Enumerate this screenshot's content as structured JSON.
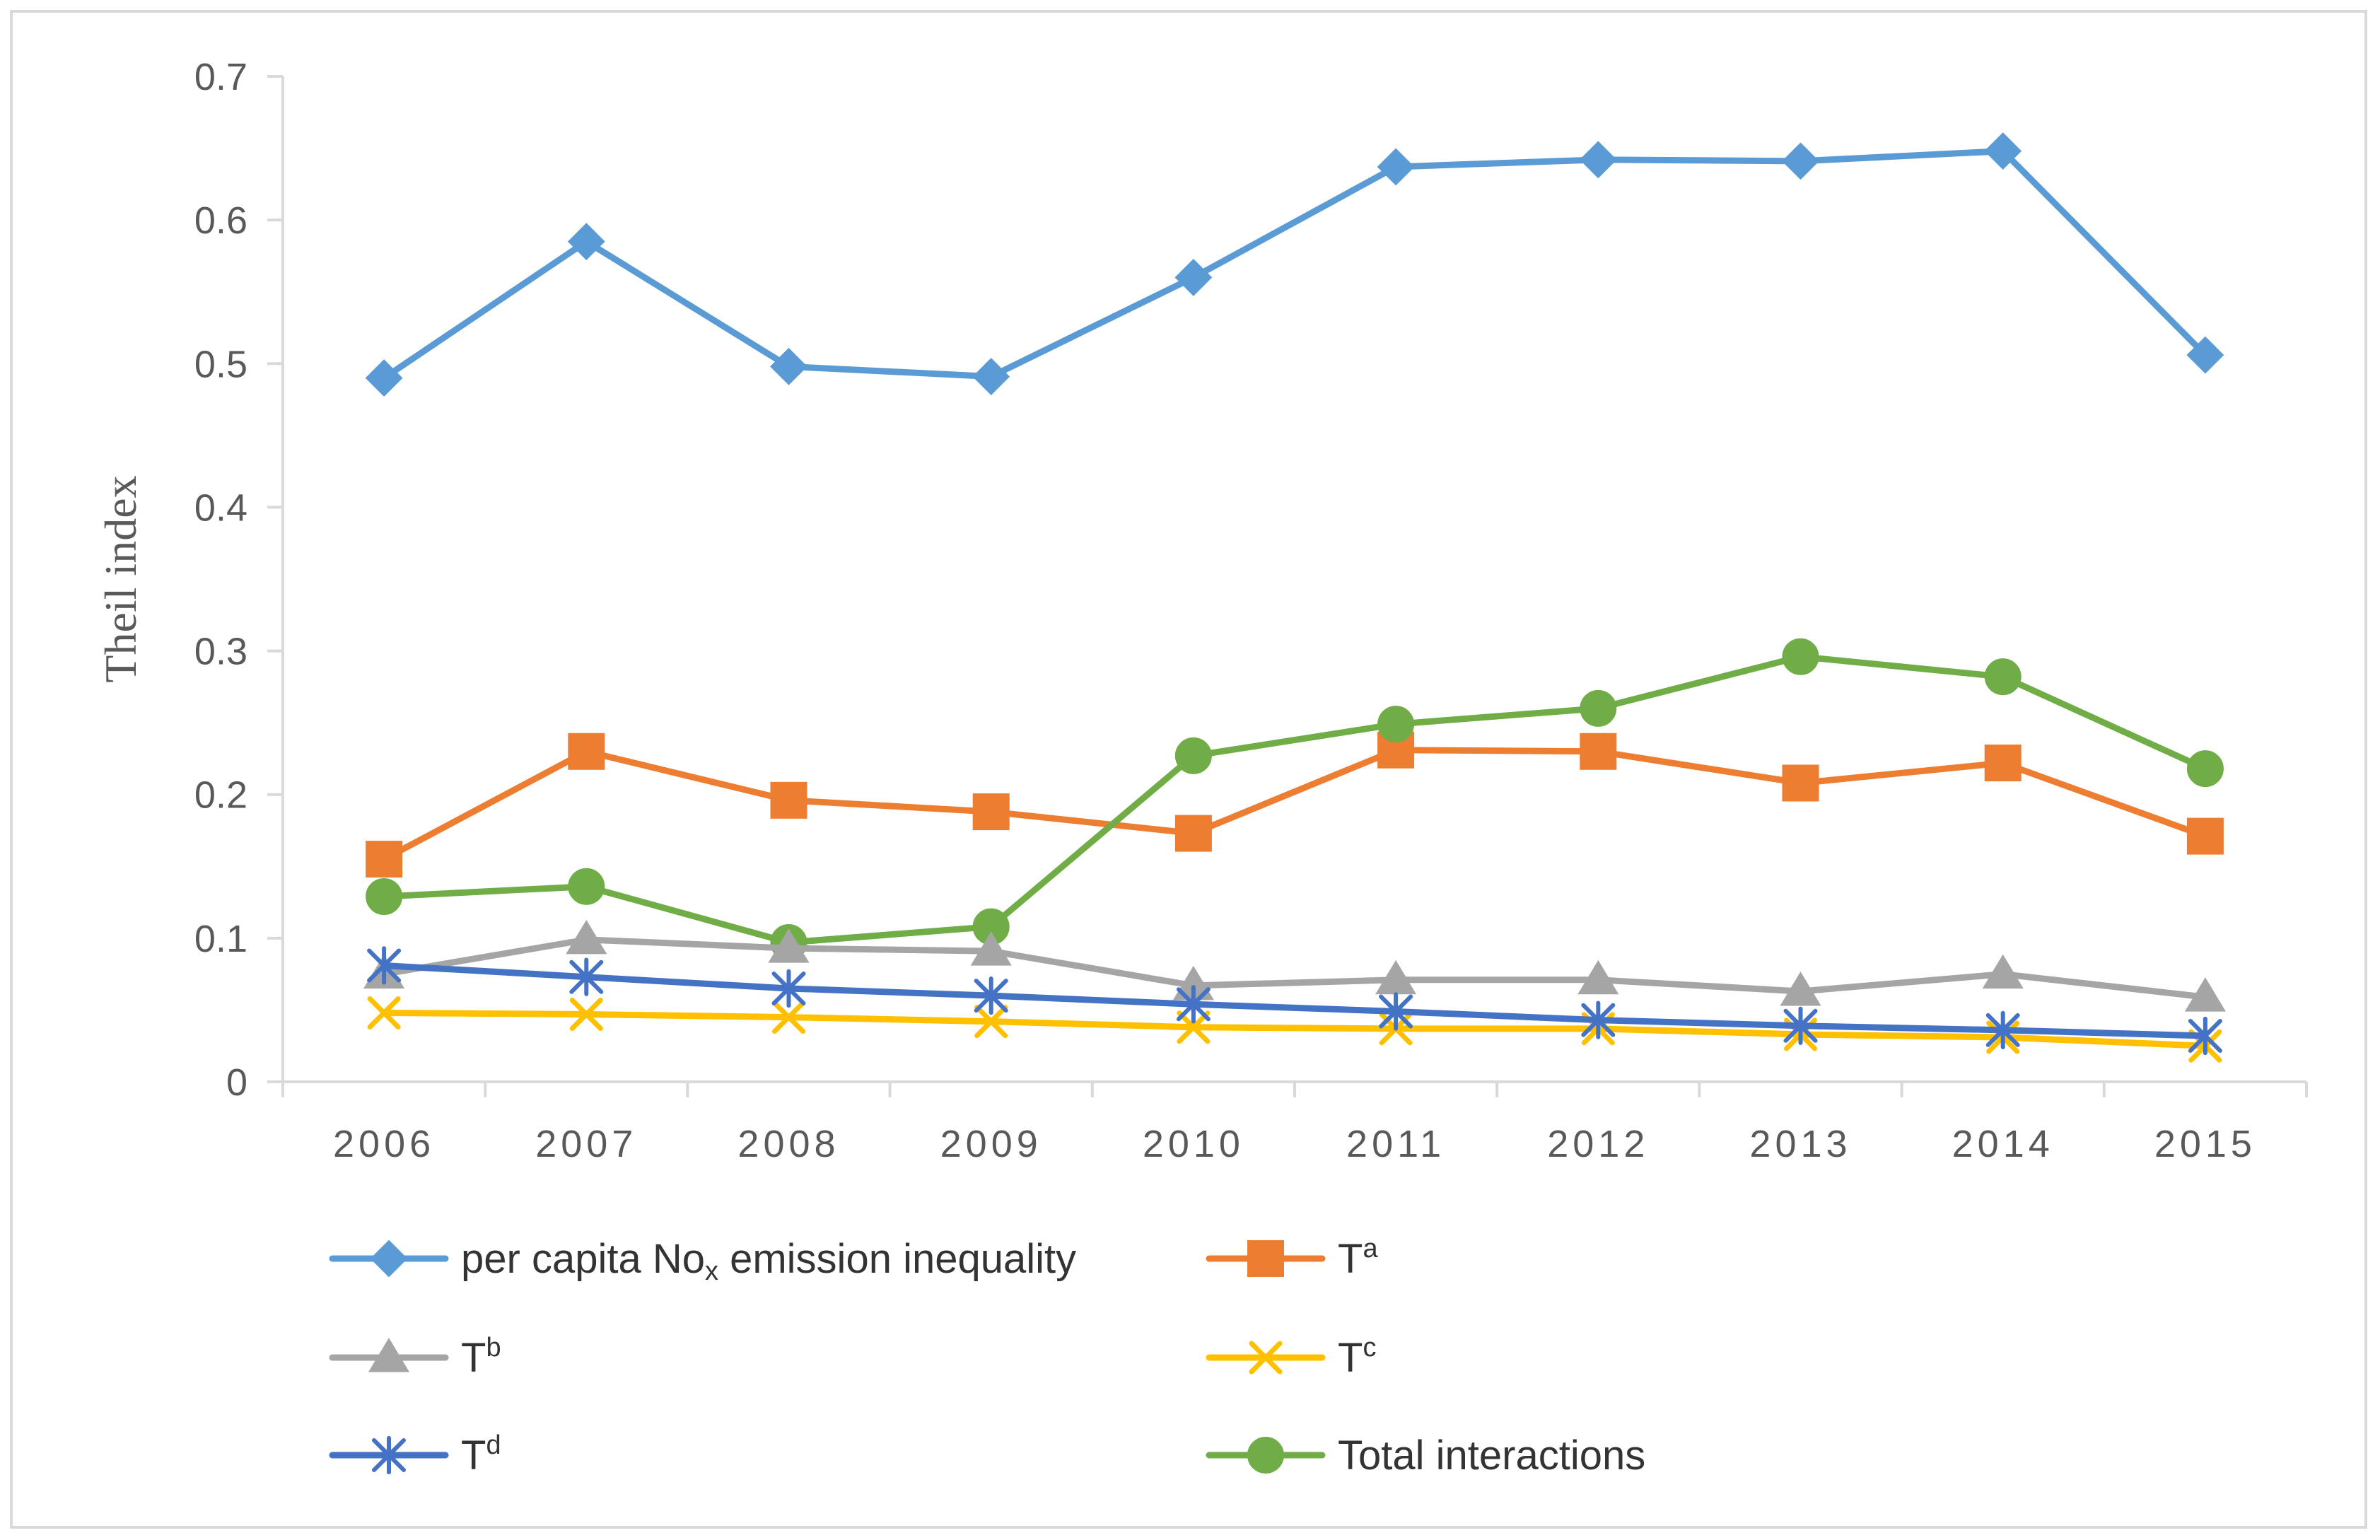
{
  "chart_data": {
    "type": "line",
    "title": "",
    "xlabel": "",
    "ylabel": "Theil index",
    "ylim": [
      0,
      0.7
    ],
    "y_ticks": [
      "0",
      "0.1",
      "0.2",
      "0.3",
      "0.4",
      "0.5",
      "0.6",
      "0.7"
    ],
    "grid": false,
    "legend_position": "bottom",
    "categories": [
      "2006",
      "2007",
      "2008",
      "2009",
      "2010",
      "2011",
      "2012",
      "2013",
      "2014",
      "2015"
    ],
    "series": [
      {
        "key": "per-capita-nox",
        "name": "per capita No",
        "name_sub": "x",
        "name_tail": " emission inequality",
        "color": "#5b9bd5",
        "marker": "diamond",
        "values": [
          0.49,
          0.585,
          0.498,
          0.491,
          0.56,
          0.637,
          0.642,
          0.641,
          0.648,
          0.506
        ]
      },
      {
        "key": "ta",
        "name": "T",
        "name_sup": "a",
        "color": "#ed7d31",
        "marker": "square",
        "values": [
          0.155,
          0.23,
          0.196,
          0.188,
          0.173,
          0.231,
          0.23,
          0.208,
          0.222,
          0.171
        ]
      },
      {
        "key": "tb",
        "name": "T",
        "name_sup": "b",
        "color": "#a5a5a5",
        "marker": "triangle",
        "values": [
          0.075,
          0.099,
          0.093,
          0.091,
          0.067,
          0.071,
          0.071,
          0.063,
          0.075,
          0.059
        ]
      },
      {
        "key": "tc",
        "name": "T",
        "name_sup": "c",
        "color": "#ffc000",
        "marker": "x",
        "values": [
          0.048,
          0.047,
          0.045,
          0.042,
          0.038,
          0.037,
          0.037,
          0.033,
          0.031,
          0.025
        ]
      },
      {
        "key": "td",
        "name": "T",
        "name_sup": "d",
        "color": "#4472c4",
        "marker": "star",
        "values": [
          0.081,
          0.073,
          0.065,
          0.06,
          0.054,
          0.049,
          0.043,
          0.039,
          0.036,
          0.032
        ]
      },
      {
        "key": "total",
        "name": "Total interactions",
        "color": "#70ad47",
        "marker": "circle",
        "values": [
          0.129,
          0.136,
          0.097,
          0.108,
          0.227,
          0.249,
          0.26,
          0.296,
          0.282,
          0.218
        ]
      }
    ]
  }
}
